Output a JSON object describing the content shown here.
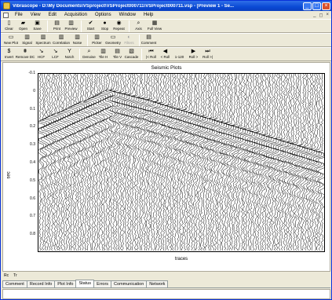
{
  "window": {
    "title": "Vibrascope - D:\\My Documents\\VSproject\\VSProject000711\\VSProject000711.vsp - [Preview 1 - Se...",
    "colors": {
      "titlebar": "#0a4ad4",
      "chrome": "#ece9d8",
      "close": "#d9512c"
    }
  },
  "menu": {
    "items": [
      "File",
      "View",
      "Edit",
      "Acquisition",
      "Options",
      "Window",
      "Help"
    ]
  },
  "toolbar1": [
    {
      "label": "Clear",
      "icon": "new-doc-icon",
      "glyph": "▯"
    },
    {
      "label": "Open",
      "icon": "folder-open-icon",
      "glyph": "▰"
    },
    {
      "label": "Save",
      "icon": "floppy-icon",
      "glyph": "▣"
    },
    {
      "label": "Print",
      "icon": "printer-icon",
      "glyph": "▤"
    },
    {
      "label": "Preview",
      "icon": "print-preview-icon",
      "glyph": "▥"
    },
    {
      "label": "Start",
      "icon": "start-icon",
      "glyph": "✔"
    },
    {
      "label": "Stop",
      "icon": "stop-icon",
      "glyph": "●"
    },
    {
      "label": "Repeat",
      "icon": "repeat-icon",
      "glyph": "◉"
    },
    {
      "label": "Axis",
      "icon": "zoom-axis-icon",
      "glyph": "⌕"
    },
    {
      "label": "Full View",
      "icon": "full-view-icon",
      "glyph": "▦"
    }
  ],
  "toolbar2": [
    {
      "label": "New Plot",
      "icon": "new-plot-icon",
      "glyph": "▭",
      "disabled": false
    },
    {
      "label": "Signal",
      "icon": "signal-icon",
      "glyph": "▥",
      "disabled": false
    },
    {
      "label": "Spectrum",
      "icon": "spectrum-icon",
      "glyph": "▥",
      "disabled": false
    },
    {
      "label": "Correlation",
      "icon": "correlation-icon",
      "glyph": "▥",
      "disabled": false
    },
    {
      "label": "Noise",
      "icon": "noise-icon",
      "glyph": "▥",
      "disabled": false
    },
    {
      "label": "Picker",
      "icon": "picker-icon",
      "glyph": "▥",
      "disabled": false
    },
    {
      "label": "Geometry",
      "icon": "geometry-icon",
      "glyph": "▭",
      "disabled": false
    },
    {
      "label": "Filters",
      "icon": "filters-icon",
      "glyph": "◐",
      "disabled": true
    },
    {
      "label": "Comment",
      "icon": "comment-icon",
      "glyph": "▤",
      "disabled": false
    }
  ],
  "toolbar3": [
    {
      "label": "Invert",
      "icon": "invert-icon",
      "glyph": "$"
    },
    {
      "label": "Remove DC",
      "icon": "remove-dc-icon",
      "glyph": "⩩"
    },
    {
      "label": "HCF",
      "icon": "hcf-icon",
      "glyph": "↘"
    },
    {
      "label": "LCF",
      "icon": "lcf-icon",
      "glyph": "↘"
    },
    {
      "label": "Notch",
      "icon": "notch-icon",
      "glyph": "Y"
    },
    {
      "label": "Denoise",
      "icon": "denoise-icon",
      "glyph": "⌕"
    },
    {
      "label": "Tile H",
      "icon": "tile-h-icon",
      "glyph": "▥"
    },
    {
      "label": "Tile V",
      "icon": "tile-v-icon",
      "glyph": "▤"
    },
    {
      "label": "Cascade",
      "icon": "cascade-icon",
      "glyph": "▧"
    },
    {
      "label": "|< Roll",
      "icon": "roll-first-icon",
      "glyph": "⏮"
    },
    {
      "label": "< Roll",
      "icon": "roll-prev-icon",
      "glyph": "◀"
    },
    {
      "label": "1-120",
      "icon": "range-label",
      "glyph": ""
    },
    {
      "label": "Roll >",
      "icon": "roll-next-icon",
      "glyph": "▶"
    },
    {
      "label": "Roll >|",
      "icon": "roll-last-icon",
      "glyph": "⏭"
    }
  ],
  "plot": {
    "title": "Seismic Plots",
    "xlabel": "traces",
    "ylabel": "sec",
    "yticks": [
      "-0.1",
      "0",
      "0.1",
      "0.2",
      "0.3",
      "0.4",
      "0.5",
      "0.6",
      "0.7",
      "0.8"
    ]
  },
  "chart_data": {
    "type": "seismic-wiggle",
    "title": "Seismic Plots",
    "xlabel": "traces",
    "ylabel": "sec",
    "ylim": [
      -0.1,
      0.9
    ],
    "trace_count": 120,
    "first_arrival_pick": {
      "trace": [
        0,
        30,
        45,
        120
      ],
      "time": [
        0.18,
        0.0,
        0.05,
        0.35
      ]
    }
  },
  "mini": {
    "left": "Rc",
    "right": "Tr"
  },
  "tabs": [
    "Comment",
    "Record Info",
    "Plot Info",
    "Status",
    "Errors",
    "Communication",
    "Network"
  ],
  "active_tab": "Status"
}
